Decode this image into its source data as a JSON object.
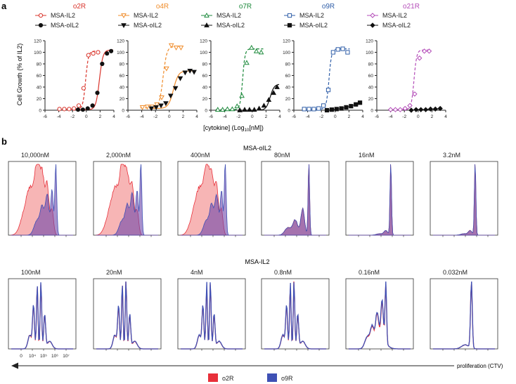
{
  "figure": {
    "panel_a_label": "a",
    "panel_b_label": "b",
    "ylabel": "Cell Growth (% of IL2)",
    "xlabel_prefix": "[cytokine] (Log",
    "xlabel_sub": "10",
    "xlabel_suffix": "[nM])",
    "row1_title": "MSA-oIL2",
    "row2_title": "MSA-IL2",
    "bottom_axis_ticks": [
      "0",
      "10⁴",
      "10⁵",
      "10⁶",
      "10⁷"
    ],
    "proliferation_label": "proliferation (CTV)",
    "legend": [
      {
        "name": "o2R",
        "color": "#e8303a"
      },
      {
        "name": "o9R",
        "color": "#3f51b5"
      }
    ]
  },
  "chart_data": [
    {
      "type": "scatter",
      "title": "o2R",
      "title_color": "#d9342b",
      "curve_color": "#d9342b",
      "xlim": [
        -6,
        4
      ],
      "ylim": [
        0,
        120
      ],
      "xticks": [
        -6,
        -4,
        -2,
        0,
        2,
        4
      ],
      "yticks": [
        0,
        20,
        40,
        60,
        80,
        100,
        120
      ],
      "series": [
        {
          "name": "MSA-IL2",
          "marker": "circle-open",
          "dashed": true,
          "x": [
            -3.9,
            -3.2,
            -2.5,
            -1.8,
            -1.1,
            -0.4,
            0.3,
            1.0,
            1.7
          ],
          "y": [
            2,
            2,
            2,
            3,
            8,
            38,
            95,
            98,
            100
          ],
          "fit": {
            "bottom": 2,
            "top": 102,
            "ec50": -0.1,
            "hill": 2.2
          }
        },
        {
          "name": "MSA-oIL2",
          "marker": "circle-filled",
          "dashed": false,
          "x": [
            -1.2,
            -0.5,
            0.2,
            0.9,
            1.6,
            2.3,
            3.0,
            3.6
          ],
          "y": [
            1,
            1,
            3,
            8,
            30,
            80,
            98,
            102
          ],
          "fit": {
            "bottom": 1,
            "top": 104,
            "ec50": 1.9,
            "hill": 1.7
          }
        }
      ]
    },
    {
      "type": "scatter",
      "title": "o4R",
      "title_color": "#f08c2a",
      "curve_color": "#f08c2a",
      "xlim": [
        -6,
        4
      ],
      "ylim": [
        0,
        120
      ],
      "xticks": [
        -6,
        -4,
        -2,
        0,
        2,
        4
      ],
      "yticks": [
        0,
        20,
        40,
        60,
        80,
        100,
        120
      ],
      "series": [
        {
          "name": "MSA-IL2",
          "marker": "triangle-down-open",
          "dashed": true,
          "x": [
            -3.9,
            -3.2,
            -2.5,
            -1.8,
            -1.1,
            -0.4,
            0.3,
            1.0,
            1.7
          ],
          "y": [
            5,
            6,
            6,
            10,
            22,
            72,
            112,
            108,
            108
          ],
          "fit": {
            "bottom": 4,
            "top": 110,
            "ec50": -0.9,
            "hill": 1.6
          }
        },
        {
          "name": "MSA-oIL2",
          "marker": "triangle-down-filled",
          "dashed": false,
          "x": [
            -2.6,
            -1.9,
            -1.2,
            -0.5,
            0.2,
            0.9,
            1.6,
            2.3,
            3.0,
            3.6
          ],
          "y": [
            3,
            5,
            8,
            12,
            25,
            38,
            55,
            65,
            68,
            66
          ],
          "fit": {
            "bottom": 3,
            "top": 68,
            "ec50": 0.6,
            "hill": 1.2
          }
        }
      ]
    },
    {
      "type": "scatter",
      "title": "o7R",
      "title_color": "#1d8a3c",
      "curve_color": "#1d8a3c",
      "xlim": [
        -6,
        4
      ],
      "ylim": [
        0,
        120
      ],
      "xticks": [
        -6,
        -4,
        -2,
        0,
        2,
        4
      ],
      "yticks": [
        0,
        20,
        40,
        60,
        80,
        100,
        120
      ],
      "series": [
        {
          "name": "MSA-IL2",
          "marker": "triangle-up-open",
          "dashed": true,
          "x": [
            -5.0,
            -4.3,
            -3.6,
            -2.9,
            -2.2,
            -1.5,
            -0.8,
            -0.1,
            0.6,
            1.3
          ],
          "y": [
            1,
            1,
            2,
            2,
            7,
            25,
            82,
            108,
            102,
            100
          ],
          "fit": {
            "bottom": 1,
            "top": 106,
            "ec50": -1.4,
            "hill": 2.4
          }
        },
        {
          "name": "MSA-oIL2",
          "marker": "triangle-up-filled",
          "dashed": false,
          "x": [
            -1.8,
            -1.1,
            -0.4,
            0.3,
            1.0,
            1.7,
            2.4,
            3.1,
            3.6
          ],
          "y": [
            0,
            1,
            1,
            1,
            3,
            8,
            18,
            30,
            40
          ],
          "fit": {
            "bottom": 0,
            "top": 45,
            "ec50": 2.6,
            "hill": 1.5
          }
        }
      ]
    },
    {
      "type": "scatter",
      "title": "o9R",
      "title_color": "#2f5ea8",
      "curve_color": "#2f5ea8",
      "xlim": [
        -6,
        4
      ],
      "ylim": [
        0,
        120
      ],
      "xticks": [
        -6,
        -4,
        -2,
        0,
        2,
        4
      ],
      "yticks": [
        0,
        20,
        40,
        60,
        80,
        100,
        120
      ],
      "series": [
        {
          "name": "MSA-IL2",
          "marker": "square-open",
          "dashed": true,
          "x": [
            -4.5,
            -3.8,
            -3.1,
            -2.4,
            -1.7,
            -1.0,
            -0.3,
            0.4,
            1.1,
            1.8
          ],
          "y": [
            2,
            2,
            2,
            3,
            8,
            35,
            100,
            105,
            106,
            100
          ],
          "fit": {
            "bottom": 2,
            "top": 106,
            "ec50": -0.9,
            "hill": 2.3
          }
        },
        {
          "name": "MSA-oIL2",
          "marker": "square-filled",
          "dashed": false,
          "x": [
            -1.2,
            -0.5,
            0.2,
            0.9,
            1.6,
            2.3,
            3.0,
            3.6
          ],
          "y": [
            0,
            1,
            2,
            3,
            5,
            7,
            10,
            13
          ],
          "fit": null
        }
      ]
    },
    {
      "type": "scatter",
      "title": "o21R",
      "title_color": "#b34bb8",
      "curve_color": "#b34bb8",
      "xlim": [
        -6,
        4
      ],
      "ylim": [
        0,
        120
      ],
      "xticks": [
        -6,
        -4,
        -2,
        0,
        2,
        4
      ],
      "yticks": [
        0,
        20,
        40,
        60,
        80,
        100,
        120
      ],
      "series": [
        {
          "name": "MSA-IL2",
          "marker": "diamond-open",
          "dashed": true,
          "x": [
            -4.0,
            -3.3,
            -2.6,
            -1.9,
            -1.2,
            -0.5,
            0.2,
            0.9,
            1.6
          ],
          "y": [
            1,
            1,
            1,
            3,
            8,
            28,
            90,
            102,
            102
          ],
          "fit": {
            "bottom": 1,
            "top": 104,
            "ec50": -0.6,
            "hill": 2.2
          }
        },
        {
          "name": "MSA-oIL2",
          "marker": "diamond-filled",
          "dashed": false,
          "x": [
            -1.0,
            -0.3,
            0.4,
            1.1,
            1.8,
            2.5,
            3.2
          ],
          "y": [
            0,
            1,
            1,
            1,
            2,
            2,
            3
          ],
          "fit": null
        }
      ]
    },
    {
      "type": "histogram-overlay",
      "row_title": "MSA-oIL2",
      "x_axis": "proliferation (CTV), log scale",
      "series_names": [
        "o2R",
        "o9R"
      ],
      "panels": [
        {
          "label": "10,000nM",
          "style": "filled",
          "o2R_shape": "broad-left-shift",
          "o9R_shape": "dominant-right-peak"
        },
        {
          "label": "2,000nM",
          "style": "filled",
          "o2R_shape": "broad-left-shift",
          "o9R_shape": "dominant-right-peak"
        },
        {
          "label": "400nM",
          "style": "filled",
          "o2R_shape": "broad-left-shift",
          "o9R_shape": "dominant-right-peak"
        },
        {
          "label": "80nM",
          "style": "filled",
          "o2R_shape": "overlapping",
          "o9R_shape": "overlapping"
        },
        {
          "label": "16nM",
          "style": "filled",
          "o2R_shape": "single-right-peak",
          "o9R_shape": "single-right-peak"
        },
        {
          "label": "3.2nM",
          "style": "filled",
          "o2R_shape": "single-right-peak",
          "o9R_shape": "single-right-peak"
        }
      ]
    },
    {
      "type": "histogram-overlay",
      "row_title": "MSA-IL2",
      "x_axis": "proliferation (CTV), log scale",
      "series_names": [
        "o2R",
        "o9R"
      ],
      "panels": [
        {
          "label": "100nM",
          "style": "line",
          "o2R_shape": "multi-peak-divided",
          "o9R_shape": "multi-peak-divided"
        },
        {
          "label": "20nM",
          "style": "line",
          "o2R_shape": "multi-peak-divided",
          "o9R_shape": "multi-peak-divided"
        },
        {
          "label": "4nM",
          "style": "line",
          "o2R_shape": "multi-peak-divided",
          "o9R_shape": "multi-peak-divided"
        },
        {
          "label": "0.8nM",
          "style": "line",
          "o2R_shape": "multi-peak-divided",
          "o9R_shape": "multi-peak-divided"
        },
        {
          "label": "0.16nM",
          "style": "line",
          "o2R_shape": "partial-division",
          "o9R_shape": "partial-division"
        },
        {
          "label": "0.032nM",
          "style": "line",
          "o2R_shape": "undivided-peak",
          "o9R_shape": "undivided-peak"
        }
      ]
    }
  ]
}
